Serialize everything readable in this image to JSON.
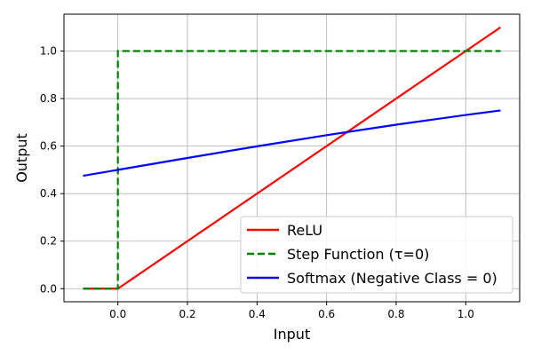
{
  "chart_data": {
    "type": "line",
    "title": "",
    "xlabel": "Input",
    "ylabel": "Output",
    "xlim": [
      -0.155,
      1.155
    ],
    "ylim": [
      -0.055,
      1.155
    ],
    "xticks": [
      0.0,
      0.2,
      0.4,
      0.6,
      0.8,
      1.0
    ],
    "yticks": [
      0.0,
      0.2,
      0.4,
      0.6,
      0.8,
      1.0
    ],
    "xtick_labels": [
      "0.0",
      "0.2",
      "0.4",
      "0.6",
      "0.8",
      "1.0"
    ],
    "ytick_labels": [
      "0.0",
      "0.2",
      "0.4",
      "0.6",
      "0.8",
      "1.0"
    ],
    "grid": true,
    "legend_position": "bottom-right",
    "series": [
      {
        "name": "ReLU",
        "color": "#ff0000",
        "style": "solid",
        "x": [
          -0.1,
          0.0,
          1.1
        ],
        "y": [
          0.0,
          0.0,
          1.1
        ]
      },
      {
        "name": "Step Function (τ=0)",
        "color": "#008000",
        "style": "dashed",
        "x": [
          -0.1,
          0.0,
          0.0,
          1.1
        ],
        "y": [
          0.0,
          0.0,
          1.0,
          1.0
        ]
      },
      {
        "name": "Softmax (Negative Class = 0)",
        "color": "#0000ff",
        "style": "solid",
        "x": [
          -0.1,
          0.0,
          0.2,
          0.4,
          0.6,
          0.8,
          1.0,
          1.1
        ],
        "y": [
          0.475,
          0.5,
          0.55,
          0.599,
          0.646,
          0.69,
          0.731,
          0.75
        ]
      }
    ]
  }
}
